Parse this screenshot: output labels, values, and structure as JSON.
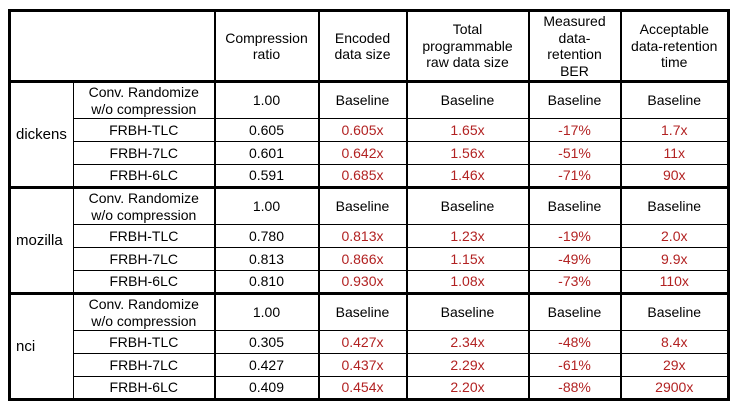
{
  "colors": {
    "highlight_text": "#b22222",
    "text": "#000000",
    "border": "#000000",
    "background": "#ffffff"
  },
  "chart_data": {
    "type": "table",
    "headers": [
      "Compression ratio",
      "Encoded data size",
      "Total programmable raw data size",
      "Measured data-retention BER",
      "Acceptable data-retention time"
    ],
    "groups": [
      {
        "name": "dickens",
        "rows": [
          {
            "method": "Conv. Randomize w/o compression",
            "values": [
              "1.00",
              "Baseline",
              "Baseline",
              "Baseline",
              "Baseline"
            ]
          },
          {
            "method": "FRBH-TLC",
            "values": [
              "0.605",
              "0.605x",
              "1.65x",
              "-17%",
              "1.7x"
            ]
          },
          {
            "method": "FRBH-7LC",
            "values": [
              "0.601",
              "0.642x",
              "1.56x",
              "-51%",
              "11x"
            ]
          },
          {
            "method": "FRBH-6LC",
            "values": [
              "0.591",
              "0.685x",
              "1.46x",
              "-71%",
              "90x"
            ]
          }
        ]
      },
      {
        "name": "mozilla",
        "rows": [
          {
            "method": "Conv. Randomize w/o compression",
            "values": [
              "1.00",
              "Baseline",
              "Baseline",
              "Baseline",
              "Baseline"
            ]
          },
          {
            "method": "FRBH-TLC",
            "values": [
              "0.780",
              "0.813x",
              "1.23x",
              "-19%",
              "2.0x"
            ]
          },
          {
            "method": "FRBH-7LC",
            "values": [
              "0.813",
              "0.866x",
              "1.15x",
              "-49%",
              "9.9x"
            ]
          },
          {
            "method": "FRBH-6LC",
            "values": [
              "0.810",
              "0.930x",
              "1.08x",
              "-73%",
              "110x"
            ]
          }
        ]
      },
      {
        "name": "nci",
        "rows": [
          {
            "method": "Conv. Randomize w/o compression",
            "values": [
              "1.00",
              "Baseline",
              "Baseline",
              "Baseline",
              "Baseline"
            ]
          },
          {
            "method": "FRBH-TLC",
            "values": [
              "0.305",
              "0.427x",
              "2.34x",
              "-48%",
              "8.4x"
            ]
          },
          {
            "method": "FRBH-7LC",
            "values": [
              "0.427",
              "0.437x",
              "2.29x",
              "-61%",
              "29x"
            ]
          },
          {
            "method": "FRBH-6LC",
            "values": [
              "0.409",
              "0.454x",
              "2.20x",
              "-88%",
              "2900x"
            ]
          }
        ]
      }
    ]
  }
}
